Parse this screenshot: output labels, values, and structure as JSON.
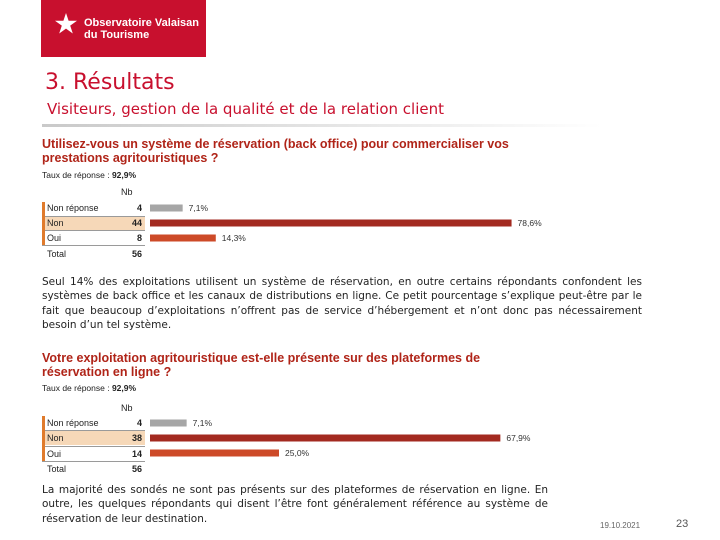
{
  "logo": {
    "line1": "Observatoire Valaisan",
    "line2": "du Tourisme"
  },
  "header": {
    "title": "3. Résultats",
    "subtitle": "Visiteurs, gestion de la qualité et de la relation client"
  },
  "colors": {
    "brand": "#c8102e",
    "bar_grey": "#a6a6a6",
    "bar_dark": "#a32a20",
    "bar_orange": "#cd4a28",
    "highlight": "#f6d8b8"
  },
  "chart1": {
    "title": "Utilisez-vous un système de réservation (back office) pour commercialiser vos prestations agritouristiques ?",
    "taux_label": "Taux de réponse : ",
    "taux_value": "92,9%",
    "nb_header": "Nb",
    "total_label": "Total",
    "total_value": "56",
    "rows": [
      {
        "label": "Non réponse",
        "n": "4",
        "pct": "7,1%"
      },
      {
        "label": "Non",
        "n": "44",
        "pct": "78,6%"
      },
      {
        "label": "Oui",
        "n": "8",
        "pct": "14,3%"
      }
    ]
  },
  "para1": "Seul 14% des exploitations utilisent un système de réservation, en outre certains répondants confondent les systèmes de back office et les canaux de distributions en ligne. Ce petit pourcentage s’explique peut-être par le fait que beaucoup d’exploitations n’offrent pas de service d’hébergement et n’ont donc pas nécessairement besoin d’un tel système.",
  "chart2": {
    "title": "Votre exploitation agritouristique est-elle présente sur des plateformes de réservation en ligne ?",
    "taux_label": "Taux de réponse : ",
    "taux_value": "92,9%",
    "nb_header": "Nb",
    "total_label": "Total",
    "total_value": "56",
    "rows": [
      {
        "label": "Non réponse",
        "n": "4",
        "pct": "7,1%"
      },
      {
        "label": "Non",
        "n": "38",
        "pct": "67,9%"
      },
      {
        "label": "Oui",
        "n": "14",
        "pct": "25,0%"
      }
    ]
  },
  "chart_data": [
    {
      "type": "bar",
      "orientation": "horizontal",
      "title": "Utilisez-vous un système de réservation (back office) pour commercialiser vos prestations agritouristiques ?",
      "categories": [
        "Non réponse",
        "Non",
        "Oui"
      ],
      "counts": [
        4,
        44,
        8
      ],
      "values": [
        7.1,
        78.6,
        14.3
      ],
      "unit": "%",
      "total": 56,
      "response_rate": "92,9%"
    },
    {
      "type": "bar",
      "orientation": "horizontal",
      "title": "Votre exploitation agritouristique est-elle présente sur des plateformes de réservation en ligne ?",
      "categories": [
        "Non réponse",
        "Non",
        "Oui"
      ],
      "counts": [
        4,
        38,
        14
      ],
      "values": [
        7.1,
        67.9,
        25.0
      ],
      "unit": "%",
      "total": 56,
      "response_rate": "92,9%"
    }
  ],
  "para2": "La majorité des sondés ne sont pas présents sur des plateformes de réservation en ligne. En outre, les quelques répondants qui disent l’être font généralement référence au système de réservation de leur destination.",
  "footer": {
    "date": "19.10.2021",
    "page": "23"
  }
}
